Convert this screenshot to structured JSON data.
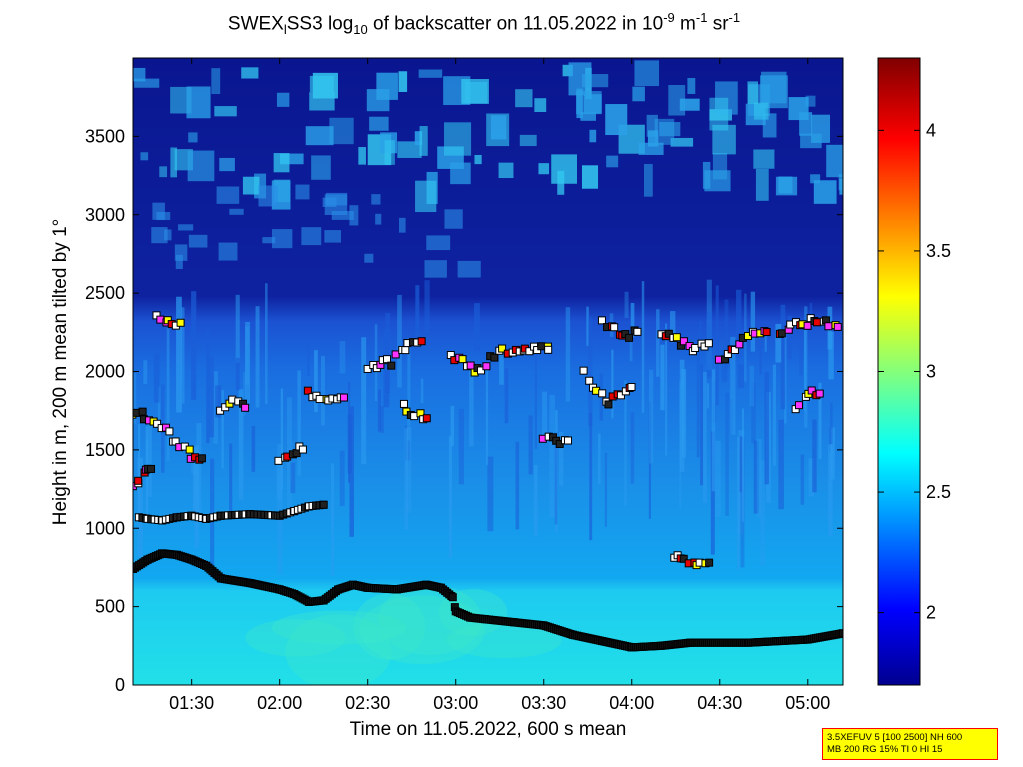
{
  "title": {
    "prefix": "SWEX",
    "sub1": "l",
    "mid": "SS3 log",
    "sub2": "10",
    "mid2": " of backscatter on 11.05.2022 in 10",
    "sup1": "-9",
    "mid3": " m",
    "sup2": "-1",
    "mid4": " sr",
    "sup3": "-1"
  },
  "info_box": {
    "line1": "3.5XEFUV 5 [100 2500] NH 600",
    "line2": "MB 200 RG 15% TI 0 HI 15"
  },
  "colors": {
    "background_low": "#1b66e0",
    "boundary_marker": "#000000",
    "marker_white": "#ffffff",
    "marker_red": "#e60000",
    "marker_yellow": "#ffff00",
    "marker_magenta": "#ff33ff"
  },
  "chart_data": {
    "type": "heatmap",
    "xlabel": "Time on 11.05.2022, 600 s mean",
    "ylabel": "Height in m, 200 m mean tilted by 1°",
    "x_ticks": [
      "01:30",
      "02:00",
      "02:30",
      "03:00",
      "03:30",
      "04:00",
      "04:30",
      "05:00"
    ],
    "x_range": [
      "01:10",
      "05:12"
    ],
    "y_ticks": [
      0,
      500,
      1000,
      1500,
      2000,
      2500,
      3000,
      3500
    ],
    "y_range": [
      0,
      4000
    ],
    "colorbar": {
      "range": [
        1.7,
        4.3
      ],
      "ticks": [
        2,
        2.5,
        3,
        3.5,
        4
      ],
      "colormap": "jet"
    },
    "mixing_layer_height": {
      "times": [
        "01:10",
        "01:15",
        "01:20",
        "01:25",
        "01:30",
        "01:35",
        "01:40",
        "01:50",
        "02:00",
        "02:05",
        "02:10",
        "02:15",
        "02:20",
        "02:25",
        "02:30",
        "02:40",
        "02:50",
        "02:55",
        "02:59",
        "03:00",
        "03:05",
        "03:10",
        "03:20",
        "03:30",
        "03:40",
        "03:50",
        "04:00",
        "04:10",
        "04:20",
        "04:40",
        "05:00",
        "05:12"
      ],
      "heights": [
        740,
        800,
        840,
        830,
        800,
        760,
        680,
        650,
        610,
        580,
        530,
        540,
        610,
        640,
        620,
        610,
        640,
        620,
        560,
        470,
        430,
        420,
        400,
        380,
        320,
        280,
        240,
        250,
        270,
        270,
        290,
        330
      ]
    },
    "cloud_layer": {
      "times": [
        "01:12",
        "01:15",
        "01:20",
        "01:25",
        "01:30",
        "01:35",
        "01:40",
        "01:50",
        "02:00",
        "02:05",
        "02:10",
        "02:15"
      ],
      "heights": [
        1070,
        1060,
        1050,
        1070,
        1080,
        1060,
        1080,
        1090,
        1080,
        1110,
        1140,
        1150
      ]
    },
    "annotation_series": [
      {
        "times": [
          "01:10",
          "01:12",
          "01:14",
          "01:16"
        ],
        "heights": [
          1270,
          1320,
          1370,
          1390
        ]
      },
      {
        "times": [
          "01:10",
          "01:14",
          "01:18",
          "01:22",
          "01:26",
          "01:30",
          "01:34"
        ],
        "heights": [
          1730,
          1720,
          1680,
          1600,
          1530,
          1460,
          1430
        ]
      },
      {
        "times": [
          "01:18",
          "01:22",
          "01:26"
        ],
        "heights": [
          2340,
          2320,
          2310
        ]
      },
      {
        "times": [
          "01:40",
          "01:44",
          "01:48"
        ],
        "heights": [
          1760,
          1810,
          1790
        ]
      },
      {
        "times": [
          "02:00",
          "02:04",
          "02:08"
        ],
        "heights": [
          1450,
          1480,
          1520
        ]
      },
      {
        "times": [
          "02:10",
          "02:14",
          "02:18",
          "02:22"
        ],
        "heights": [
          1860,
          1830,
          1810,
          1840
        ]
      },
      {
        "times": [
          "02:30",
          "02:34",
          "02:38"
        ],
        "heights": [
          2030,
          2050,
          2060
        ]
      },
      {
        "times": [
          "02:40",
          "02:44",
          "02:48"
        ],
        "heights": [
          2130,
          2160,
          2180
        ]
      },
      {
        "times": [
          "02:42",
          "02:46",
          "02:50"
        ],
        "heights": [
          1780,
          1720,
          1700
        ]
      },
      {
        "times": [
          "02:58",
          "03:02",
          "03:06",
          "03:10"
        ],
        "heights": [
          2110,
          2060,
          2000,
          2030
        ]
      },
      {
        "times": [
          "03:12",
          "03:16",
          "03:20",
          "03:24",
          "03:28",
          "03:32"
        ],
        "heights": [
          2080,
          2130,
          2150,
          2150,
          2140,
          2150
        ]
      },
      {
        "times": [
          "03:30",
          "03:34",
          "03:38"
        ],
        "heights": [
          1570,
          1560,
          1550
        ]
      },
      {
        "times": [
          "03:44",
          "03:48",
          "03:52",
          "03:56",
          "04:00"
        ],
        "heights": [
          1980,
          1880,
          1790,
          1860,
          1880
        ]
      },
      {
        "times": [
          "03:50",
          "03:54",
          "03:58",
          "04:02"
        ],
        "heights": [
          2310,
          2270,
          2240,
          2240
        ]
      },
      {
        "times": [
          "04:10",
          "04:14",
          "04:18",
          "04:22",
          "04:26"
        ],
        "heights": [
          2240,
          2210,
          2170,
          2150,
          2170
        ]
      },
      {
        "times": [
          "04:30",
          "04:34",
          "04:38",
          "04:42",
          "04:46"
        ],
        "heights": [
          2080,
          2130,
          2200,
          2250,
          2260
        ]
      },
      {
        "times": [
          "04:50",
          "04:54",
          "04:58",
          "05:02",
          "05:06",
          "05:10"
        ],
        "heights": [
          2250,
          2280,
          2310,
          2320,
          2310,
          2300
        ]
      },
      {
        "times": [
          "04:14",
          "04:18",
          "04:22",
          "04:26"
        ],
        "heights": [
          810,
          800,
          790,
          790
        ]
      },
      {
        "times": [
          "04:56",
          "05:00",
          "05:04"
        ],
        "heights": [
          1780,
          1850,
          1880
        ]
      }
    ]
  }
}
